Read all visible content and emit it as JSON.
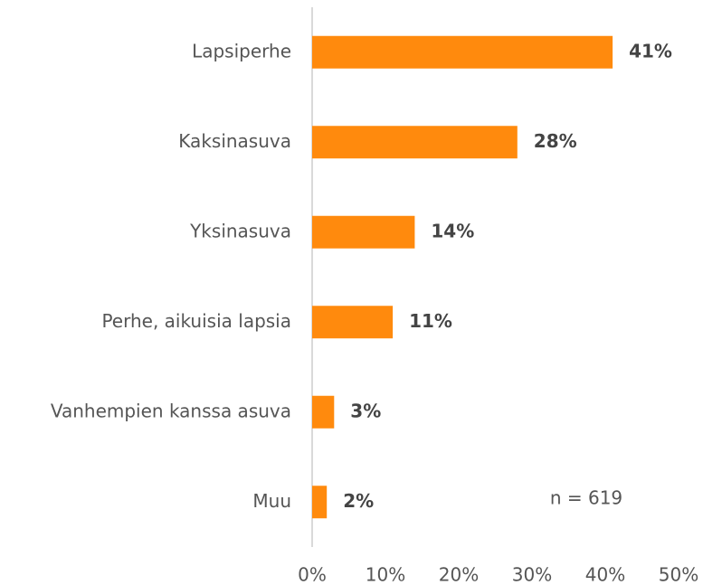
{
  "chart_data": {
    "type": "barh",
    "categories": [
      "Lapsiperhe",
      "Kaksinasuva",
      "Yksinasuva",
      "Perhe, aikuisia lapsia",
      "Vanhempien kanssa asuva",
      "Muu"
    ],
    "values": [
      41,
      28,
      14,
      11,
      3,
      2
    ],
    "value_labels": [
      "41%",
      "28%",
      "14%",
      "11%",
      "3%",
      "2%"
    ],
    "color": "#ff8a0d",
    "xlim": [
      0,
      50
    ],
    "xticks": [
      {
        "value": 0,
        "label": "0%"
      },
      {
        "value": 10,
        "label": "10%"
      },
      {
        "value": 20,
        "label": "20%"
      },
      {
        "value": 30,
        "label": "30%"
      },
      {
        "value": 40,
        "label": "40%"
      },
      {
        "value": 50,
        "label": "50%"
      }
    ],
    "annotation": "n = 619",
    "grid": false
  }
}
